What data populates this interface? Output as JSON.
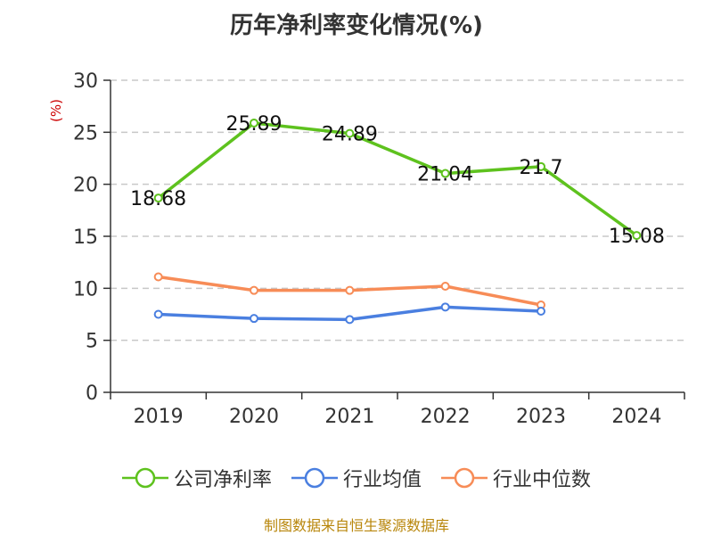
{
  "title": "历年净利率变化情况(%)",
  "ylabel_unit": "(%)",
  "source": "制图数据来自恒生聚源数据库",
  "chart_data": {
    "type": "line",
    "categories": [
      "2019",
      "2020",
      "2021",
      "2022",
      "2023",
      "2024"
    ],
    "ylim": [
      0,
      30
    ],
    "yticks": [
      "0",
      "5",
      "10",
      "15",
      "20",
      "25",
      "30"
    ],
    "grid": true,
    "legend_position": "bottom",
    "series": [
      {
        "name": "公司净利率",
        "color": "#5ec21e",
        "values": [
          18.68,
          25.89,
          24.89,
          21.04,
          21.7,
          15.08
        ],
        "labels": [
          "18.68",
          "25.89",
          "24.89",
          "21.04",
          "21.7",
          "15.08"
        ]
      },
      {
        "name": "行业均值",
        "color": "#4a7fe0",
        "values": [
          7.5,
          7.1,
          7.0,
          8.2,
          7.8,
          null
        ]
      },
      {
        "name": "行业中位数",
        "color": "#f78c57",
        "values": [
          11.1,
          9.8,
          9.8,
          10.2,
          8.4,
          null
        ]
      }
    ]
  }
}
